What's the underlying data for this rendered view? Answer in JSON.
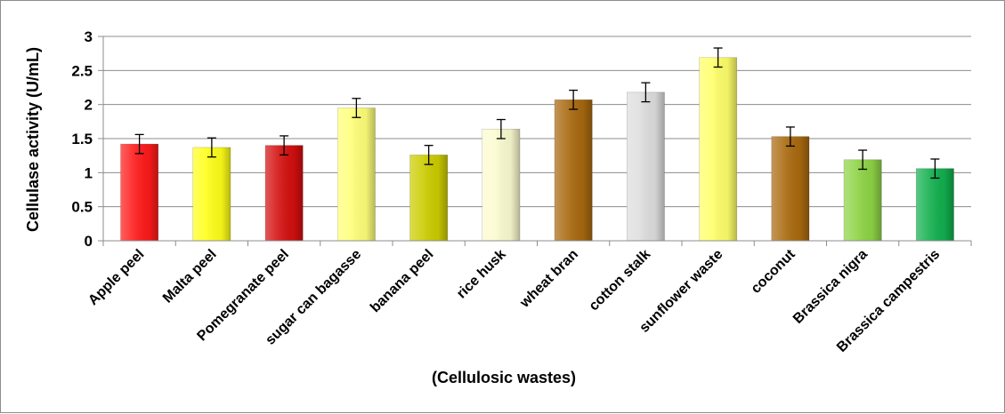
{
  "chart_data": {
    "type": "bar",
    "title": "",
    "xlabel": "(Cellulosic wastes)",
    "ylabel": "Cellulase activity (U/mL)",
    "ylim": [
      0,
      3
    ],
    "yticks": [
      "0",
      "0.5",
      "1",
      "1.5",
      "2",
      "2.5",
      "3"
    ],
    "grid": true,
    "legend": "none",
    "categories": [
      "Apple peel",
      "Malta peel",
      "Pomegranate peel",
      "sugar can bagasse",
      "banana peel",
      "rice husk",
      "wheat bran",
      "cotton stalk",
      "sunflower waste",
      "coconut",
      "Brassica nigra",
      "Brassica campestris"
    ],
    "values": [
      1.42,
      1.37,
      1.4,
      1.95,
      1.26,
      1.64,
      2.07,
      2.18,
      2.69,
      1.53,
      1.19,
      1.06
    ],
    "errors": [
      0.14,
      0.14,
      0.14,
      0.14,
      0.14,
      0.14,
      0.14,
      0.14,
      0.14,
      0.14,
      0.14,
      0.14
    ],
    "colors": [
      "#ff1a1a",
      "#ffff1a",
      "#d40f0f",
      "#ffff7a",
      "#cccc00",
      "#fbfbd0",
      "#a8690e",
      "#dedede",
      "#ffff6a",
      "#aa6a0e",
      "#8ed445",
      "#12b04e"
    ]
  }
}
